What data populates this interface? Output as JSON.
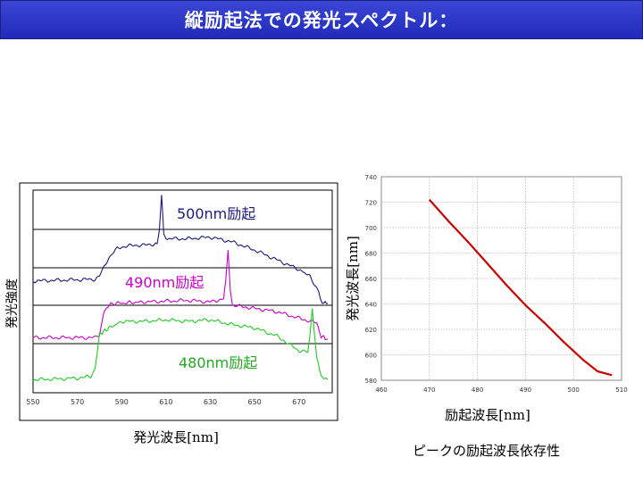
{
  "page": {
    "title": "縦励起法での発光スペクトル："
  },
  "caption": "ピークの励起波長依存性",
  "colors": {
    "title_bg": "#2a35c8",
    "series_500": "#1a1a80",
    "series_490": "#cc00cc",
    "series_480": "#22cc22",
    "curve": "#cc0000"
  },
  "chart_data": [
    {
      "type": "line",
      "xlabel": "発光波長[nm]",
      "ylabel": "発光強度",
      "xticks": [
        550,
        570,
        590,
        610,
        630,
        650,
        670
      ],
      "xlim": [
        550,
        685
      ],
      "grid": "horizontal lines only",
      "series": [
        {
          "name": "500nm励起",
          "color": "#1a1a80",
          "peak": 608,
          "x": [
            550,
            578,
            580,
            584,
            588,
            590,
            596,
            600,
            606,
            607,
            608,
            609,
            610,
            620,
            630,
            640,
            650,
            660,
            670,
            675,
            679,
            680,
            683
          ],
          "y": [
            0.69,
            0.7,
            0.72,
            0.83,
            0.89,
            0.9,
            0.91,
            0.91,
            0.92,
            1.0,
            1.22,
            0.98,
            0.95,
            0.95,
            0.96,
            0.93,
            0.88,
            0.82,
            0.76,
            0.72,
            0.62,
            0.56,
            0.55
          ]
        },
        {
          "name": "490nm励起",
          "color": "#cc00cc",
          "peak": 638,
          "x": [
            550,
            578,
            580,
            582,
            585,
            600,
            620,
            630,
            636,
            637,
            638,
            639,
            640,
            650,
            660,
            670,
            678,
            680,
            683
          ],
          "y": [
            0.34,
            0.34,
            0.36,
            0.5,
            0.55,
            0.56,
            0.57,
            0.56,
            0.58,
            0.7,
            0.88,
            0.63,
            0.54,
            0.52,
            0.5,
            0.46,
            0.43,
            0.35,
            0.33
          ]
        },
        {
          "name": "480nm励起",
          "color": "#22cc22",
          "peak": 676,
          "x": [
            550,
            570,
            576,
            578,
            580,
            583,
            590,
            600,
            610,
            620,
            630,
            640,
            650,
            660,
            670,
            674,
            675,
            676,
            677,
            678,
            680,
            683
          ],
          "y": [
            0.08,
            0.09,
            0.1,
            0.15,
            0.36,
            0.39,
            0.44,
            0.44,
            0.45,
            0.44,
            0.45,
            0.42,
            0.4,
            0.35,
            0.26,
            0.25,
            0.36,
            0.52,
            0.36,
            0.22,
            0.1,
            0.08
          ]
        }
      ]
    },
    {
      "type": "line",
      "xlabel": "励起波長[nm]",
      "ylabel": "発光波長[nm]",
      "xlim": [
        460,
        510
      ],
      "ylim": [
        580,
        740
      ],
      "xticks": [
        460,
        470,
        480,
        490,
        500,
        510
      ],
      "yticks": [
        580,
        600,
        620,
        640,
        660,
        680,
        700,
        720,
        740
      ],
      "grid": true,
      "series": [
        {
          "color": "#cc0000",
          "x": [
            470,
            474,
            478,
            482,
            486,
            490,
            494,
            498,
            502,
            505,
            508
          ],
          "y": [
            722,
            705,
            689,
            672,
            655,
            639,
            625,
            610,
            596,
            587,
            584
          ]
        }
      ]
    }
  ]
}
